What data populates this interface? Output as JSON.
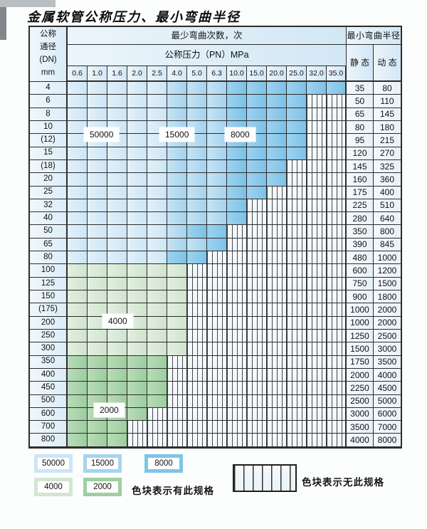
{
  "title": "金属软管公称压力、最小弯曲半径",
  "table": {
    "header": {
      "dn_label_lines": [
        "公称",
        "通径",
        "(DN)",
        "mm"
      ],
      "bend_cycles_label": "最少弯曲次数，次",
      "pressure_label": "公称压力（PN）MPa",
      "radius_label": "最小弯曲半径",
      "static_label": "静 态",
      "dynamic_label": "动 态",
      "pressure_columns": [
        "0.6",
        "1.0",
        "1.6",
        "2.0",
        "2.5",
        "4.0",
        "5.0",
        "6.3",
        "10.0",
        "15.0",
        "20.0",
        "25.0",
        "32.0",
        "35.0"
      ]
    },
    "rows": [
      {
        "dn": "4",
        "static": "35",
        "dynamic": "80",
        "zone": "blue",
        "colored": 14,
        "dark_from": 8
      },
      {
        "dn": "6",
        "static": "50",
        "dynamic": "110",
        "zone": "blue",
        "colored": 12,
        "dark_from": 8
      },
      {
        "dn": "8",
        "static": "65",
        "dynamic": "145",
        "zone": "blue",
        "colored": 12,
        "dark_from": 8
      },
      {
        "dn": "10",
        "static": "80",
        "dynamic": "180",
        "zone": "blue",
        "colored": 12,
        "dark_from": 8
      },
      {
        "dn": "(12)",
        "static": "95",
        "dynamic": "215",
        "zone": "blue",
        "colored": 12,
        "dark_from": 8
      },
      {
        "dn": "15",
        "static": "120",
        "dynamic": "270",
        "zone": "blue",
        "colored": 12,
        "dark_from": 8
      },
      {
        "dn": "(18)",
        "static": "145",
        "dynamic": "325",
        "zone": "blue",
        "colored": 11,
        "dark_from": 8
      },
      {
        "dn": "20",
        "static": "160",
        "dynamic": "360",
        "zone": "blue",
        "colored": 11,
        "dark_from": 8
      },
      {
        "dn": "25",
        "static": "175",
        "dynamic": "400",
        "zone": "blue",
        "colored": 10,
        "dark_from": 8
      },
      {
        "dn": "32",
        "static": "225",
        "dynamic": "510",
        "zone": "blue",
        "colored": 9,
        "dark_from": 8
      },
      {
        "dn": "40",
        "static": "280",
        "dynamic": "640",
        "zone": "blue",
        "colored": 9,
        "dark_from": 8
      },
      {
        "dn": "50",
        "static": "350",
        "dynamic": "800",
        "zone": "blue",
        "colored": 8,
        "dark_from": 6
      },
      {
        "dn": "65",
        "static": "390",
        "dynamic": "845",
        "zone": "blue",
        "colored": 8,
        "dark_from": 7
      },
      {
        "dn": "80",
        "static": "480",
        "dynamic": "1000",
        "zone": "blue",
        "colored": 7,
        "dark_from": 5
      },
      {
        "dn": "100",
        "static": "600",
        "dynamic": "1200",
        "zone": "g4",
        "colored": 6
      },
      {
        "dn": "125",
        "static": "750",
        "dynamic": "1500",
        "zone": "g4",
        "colored": 6
      },
      {
        "dn": "150",
        "static": "900",
        "dynamic": "1800",
        "zone": "g4",
        "colored": 6
      },
      {
        "dn": "(175)",
        "static": "1000",
        "dynamic": "2000",
        "zone": "g4",
        "colored": 6
      },
      {
        "dn": "200",
        "static": "1000",
        "dynamic": "2000",
        "zone": "g4",
        "colored": 6
      },
      {
        "dn": "250",
        "static": "1250",
        "dynamic": "2500",
        "zone": "g4",
        "colored": 6
      },
      {
        "dn": "300",
        "static": "1500",
        "dynamic": "3000",
        "zone": "g4",
        "colored": 6
      },
      {
        "dn": "350",
        "static": "1750",
        "dynamic": "3500",
        "zone": "g2",
        "colored": 5
      },
      {
        "dn": "400",
        "static": "2000",
        "dynamic": "4000",
        "zone": "g2",
        "colored": 5
      },
      {
        "dn": "450",
        "static": "2250",
        "dynamic": "4500",
        "zone": "g2",
        "colored": 5
      },
      {
        "dn": "500",
        "static": "2500",
        "dynamic": "5000",
        "zone": "g2",
        "colored": 5
      },
      {
        "dn": "600",
        "static": "3000",
        "dynamic": "6000",
        "zone": "g2",
        "colored": 4
      },
      {
        "dn": "700",
        "static": "3500",
        "dynamic": "7000",
        "zone": "g2",
        "colored": 3
      },
      {
        "dn": "800",
        "static": "4000",
        "dynamic": "8000",
        "zone": "g2",
        "colored": 3
      }
    ]
  },
  "region_labels": [
    "50000",
    "15000",
    "8000",
    "4000",
    "2000"
  ],
  "legend": {
    "items": [
      {
        "label": "50000",
        "color": "#cde6f6"
      },
      {
        "label": "15000",
        "color": "#a6d4ef"
      },
      {
        "label": "8000",
        "color": "#7fc4e8"
      },
      {
        "label": "4000",
        "color": "#d3e6d1"
      },
      {
        "label": "2000",
        "color": "#9ecf9f"
      }
    ],
    "has_spec_note": "色块表示有此规格",
    "no_spec_note": "色块表示无此规格"
  },
  "colors": {
    "c50000": "#cde6f6",
    "c15000": "#a6d4ef",
    "c8000": "#7fc4e8",
    "c4000": "#d3e6d1",
    "c2000": "#9ecf9f",
    "grid": "#2d2d2d",
    "header_bg": "#d9ecf7"
  }
}
